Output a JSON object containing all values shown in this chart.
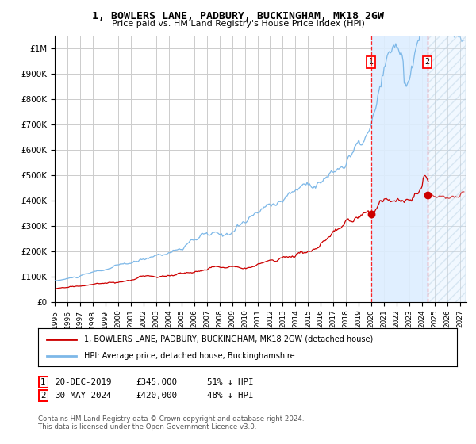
{
  "title": "1, BOWLERS LANE, PADBURY, BUCKINGHAM, MK18 2GW",
  "subtitle": "Price paid vs. HM Land Registry's House Price Index (HPI)",
  "xlim_start": 1995.0,
  "xlim_end": 2027.5,
  "ylim": [
    0,
    1050000
  ],
  "background_color": "#ffffff",
  "plot_bg_color": "#ffffff",
  "grid_color": "#cccccc",
  "hpi_color": "#7db8e8",
  "price_color": "#cc0000",
  "sale1_date": 2019.97,
  "sale1_price": 345000,
  "sale2_date": 2024.41,
  "sale2_price": 420000,
  "footer": "Contains HM Land Registry data © Crown copyright and database right 2024.\nThis data is licensed under the Open Government Licence v3.0.",
  "legend_entry1": "1, BOWLERS LANE, PADBURY, BUCKINGHAM, MK18 2GW (detached house)",
  "legend_entry2": "HPI: Average price, detached house, Buckinghamshire",
  "shade_color": "#ddeeff",
  "hatch_color": "#b0cce0"
}
